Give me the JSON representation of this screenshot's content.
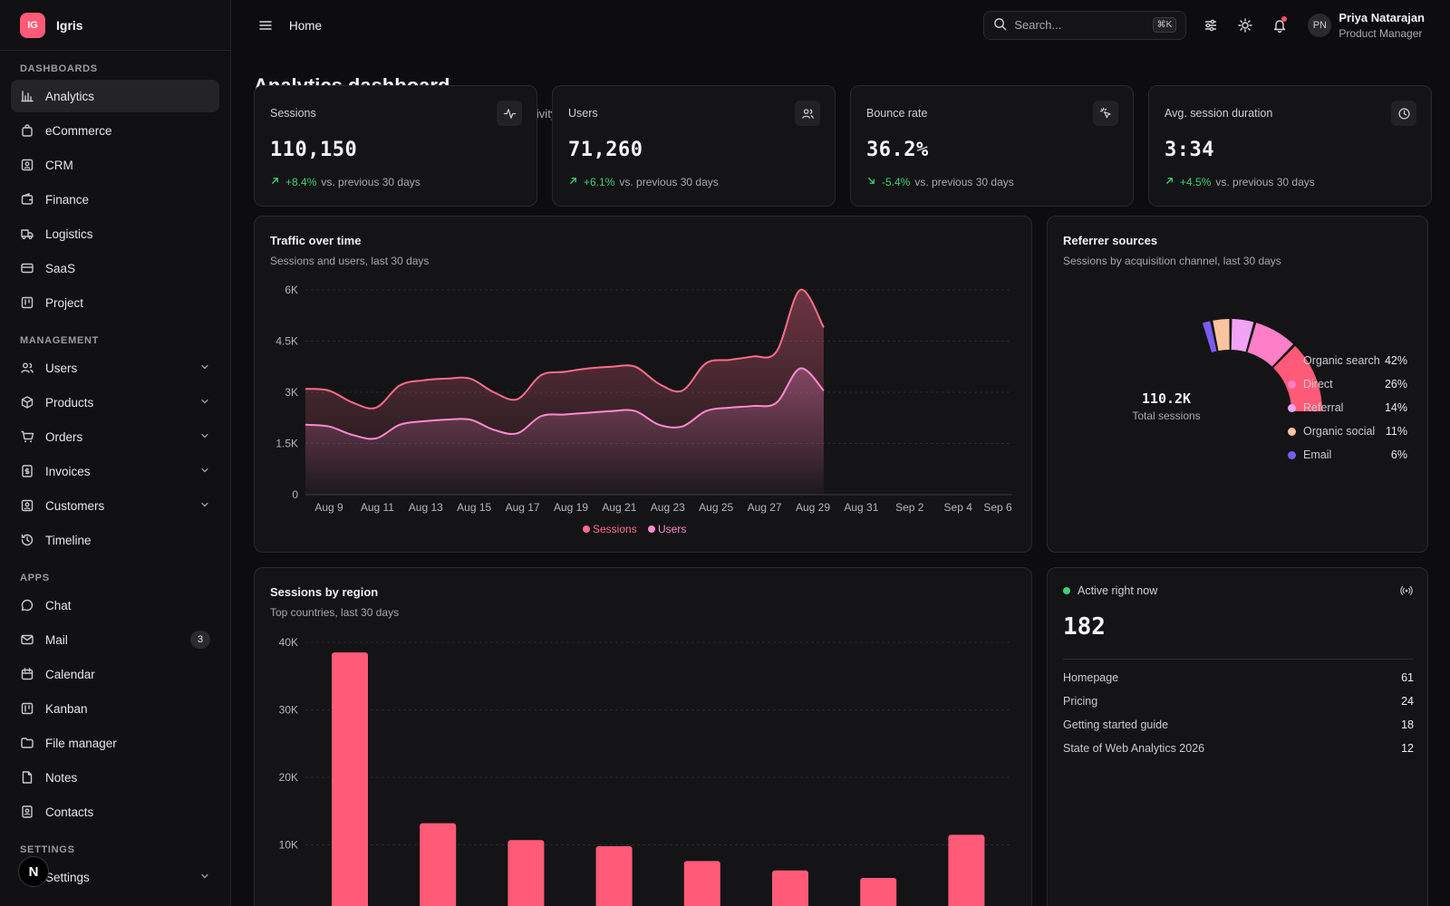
{
  "brand": {
    "initials": "IG",
    "name": "Igris"
  },
  "sidebar": {
    "sections": [
      {
        "label": "DASHBOARDS",
        "items": [
          {
            "label": "Analytics",
            "icon": "bar-chart-icon",
            "active": true
          },
          {
            "label": "eCommerce",
            "icon": "shopping-bag-icon"
          },
          {
            "label": "CRM",
            "icon": "contact-card-icon"
          },
          {
            "label": "Finance",
            "icon": "wallet-icon"
          },
          {
            "label": "Logistics",
            "icon": "truck-icon"
          },
          {
            "label": "SaaS",
            "icon": "credit-card-icon"
          },
          {
            "label": "Project",
            "icon": "kanban-board-icon"
          }
        ]
      },
      {
        "label": "MANAGEMENT",
        "items": [
          {
            "label": "Users",
            "icon": "users-icon",
            "expandable": true
          },
          {
            "label": "Products",
            "icon": "package-icon",
            "expandable": true
          },
          {
            "label": "Orders",
            "icon": "shopping-cart-icon",
            "expandable": true
          },
          {
            "label": "Invoices",
            "icon": "invoice-icon",
            "expandable": true
          },
          {
            "label": "Customers",
            "icon": "customer-icon",
            "expandable": true
          },
          {
            "label": "Timeline",
            "icon": "history-icon"
          }
        ]
      },
      {
        "label": "APPS",
        "items": [
          {
            "label": "Chat",
            "icon": "chat-bubble-icon"
          },
          {
            "label": "Mail",
            "icon": "mail-icon",
            "badge": "3"
          },
          {
            "label": "Calendar",
            "icon": "calendar-icon"
          },
          {
            "label": "Kanban",
            "icon": "kanban-icon"
          },
          {
            "label": "File manager",
            "icon": "folder-icon"
          },
          {
            "label": "Notes",
            "icon": "note-icon"
          },
          {
            "label": "Contacts",
            "icon": "contacts-icon"
          }
        ]
      },
      {
        "label": "SETTINGS",
        "items": [
          {
            "label": "Settings",
            "icon": "gear-icon",
            "expandable": true
          }
        ]
      }
    ],
    "fab_label": "N"
  },
  "topbar": {
    "breadcrumb": "Home",
    "search_placeholder": "Search...",
    "search_shortcut": "⌘K",
    "user_initials": "PN",
    "user_name": "Priya Natarajan",
    "user_role": "Product Manager"
  },
  "page": {
    "title": "Analytics dashboard",
    "subtitle": "Sessions, traffic sources, top pages and live visitor activity across the site."
  },
  "stats": [
    {
      "label": "Sessions",
      "value": "110,150",
      "delta": "+8.4%",
      "direction": "up",
      "icon": "activity-icon",
      "note": "vs. previous 30 days"
    },
    {
      "label": "Users",
      "value": "71,260",
      "delta": "+6.1%",
      "direction": "up",
      "icon": "users-icon",
      "note": "vs. previous 30 days"
    },
    {
      "label": "Bounce rate",
      "value": "36.2%",
      "delta": "-5.4%",
      "direction": "down",
      "icon": "pointer-click-icon",
      "note": "vs. previous 30 days"
    },
    {
      "label": "Avg. session duration",
      "value": "3:34",
      "delta": "+4.5%",
      "direction": "up",
      "icon": "clock-icon",
      "note": "vs. previous 30 days"
    }
  ],
  "traffic": {
    "title": "Traffic over time",
    "subtitle": "Sessions and users, last 30 days"
  },
  "referrers": {
    "title": "Referrer sources",
    "subtitle": "Sessions by acquisition channel, last 30 days",
    "center_value": "110.2K",
    "center_label": "Total sessions"
  },
  "regions": {
    "title": "Sessions by region",
    "subtitle": "Top countries, last 30 days"
  },
  "active": {
    "label": "Active right now",
    "value": "182",
    "icon": "broadcast-icon",
    "pages": [
      {
        "name": "Homepage",
        "count": "61"
      },
      {
        "name": "Pricing",
        "count": "24"
      },
      {
        "name": "Getting started guide",
        "count": "18"
      },
      {
        "name": "State of Web Analytics 2026",
        "count": "12"
      }
    ]
  },
  "colors": {
    "accent": "#ff5a78",
    "positive": "#3ecf7a",
    "users": "#ff7ec8"
  },
  "chart_data": [
    {
      "type": "area",
      "title": "Traffic over time",
      "x_ticks": [
        "Aug 9",
        "Aug 11",
        "Aug 13",
        "Aug 15",
        "Aug 17",
        "Aug 19",
        "Aug 21",
        "Aug 23",
        "Aug 25",
        "Aug 27",
        "Aug 29",
        "Aug 31",
        "Sep 2",
        "Sep 4",
        "Sep 6"
      ],
      "y_ticks": [
        "0",
        "1.5K",
        "3K",
        "4.5K",
        "6K"
      ],
      "ylim": [
        0,
        6000
      ],
      "x": [
        "Aug 8",
        "Aug 9",
        "Aug 10",
        "Aug 11",
        "Aug 12",
        "Aug 13",
        "Aug 14",
        "Aug 15",
        "Aug 16",
        "Aug 17",
        "Aug 18",
        "Aug 19",
        "Aug 20",
        "Aug 21",
        "Aug 22",
        "Aug 23",
        "Aug 24",
        "Aug 25",
        "Aug 26",
        "Aug 27",
        "Aug 28",
        "Aug 29",
        "Aug 30"
      ],
      "series": [
        {
          "name": "Sessions",
          "color": "#ff6b8b",
          "values": [
            3100,
            3050,
            2700,
            2550,
            3200,
            3350,
            3400,
            3400,
            3000,
            2800,
            3500,
            3600,
            3700,
            3750,
            3750,
            3250,
            3050,
            3850,
            3950,
            4050,
            4200,
            6000,
            4900
          ]
        },
        {
          "name": "Users",
          "color": "#ff8ad0",
          "values": [
            2050,
            2000,
            1750,
            1650,
            2050,
            2150,
            2200,
            2200,
            1900,
            1800,
            2300,
            2350,
            2400,
            2450,
            2450,
            2050,
            2000,
            2450,
            2550,
            2600,
            2700,
            3700,
            3050
          ]
        }
      ],
      "legend": [
        "Sessions",
        "Users"
      ]
    },
    {
      "type": "pie",
      "title": "Referrer sources",
      "slices": [
        {
          "name": "Organic search",
          "value": 42,
          "label": "42%",
          "color": "#ff5a78"
        },
        {
          "name": "Direct",
          "value": 26,
          "label": "26%",
          "color": "#ff7ec8"
        },
        {
          "name": "Referral",
          "value": 14,
          "label": "14%",
          "color": "#f0a4f5"
        },
        {
          "name": "Organic social",
          "value": 11,
          "label": "11%",
          "color": "#f9c49f"
        },
        {
          "name": "Email",
          "value": 6,
          "label": "6%",
          "color": "#7a5cf0"
        }
      ]
    },
    {
      "type": "bar",
      "title": "Sessions by region",
      "y_ticks": [
        "10K",
        "20K",
        "30K",
        "40K"
      ],
      "ylim": [
        0,
        40000
      ],
      "values": [
        38500,
        13200,
        10700,
        9800,
        7600,
        6200,
        5100,
        11500
      ]
    }
  ]
}
